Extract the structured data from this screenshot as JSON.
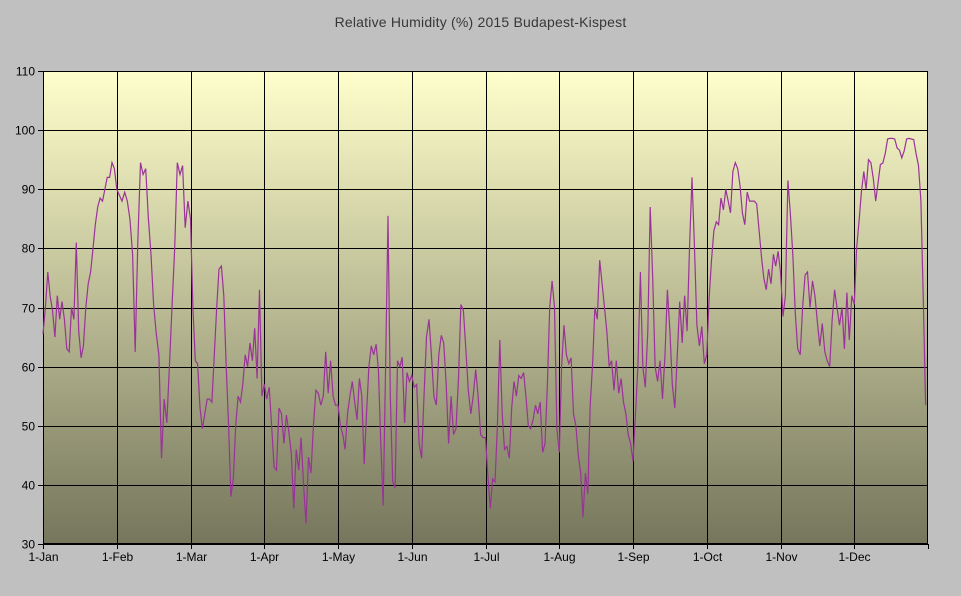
{
  "window": {
    "background_color": "#c0c0c0"
  },
  "chart_data": {
    "type": "line",
    "title": "Relative Humidity (%) 2015 Budapest-Kispest",
    "xlabel": "",
    "ylabel": "",
    "ylim": [
      30,
      110
    ],
    "y_ticks": [
      110,
      100,
      90,
      80,
      70,
      60,
      50,
      40,
      30
    ],
    "x_tick_labels": [
      "1-Jan",
      "1-Feb",
      "1-Mar",
      "1-Apr",
      "1-May",
      "1-Jun",
      "1-Jul",
      "1-Aug",
      "1-Sep",
      "1-Oct",
      "1-Nov",
      "1-Dec"
    ],
    "days_in_month": [
      31,
      28,
      31,
      30,
      31,
      30,
      31,
      31,
      30,
      31,
      30,
      31
    ],
    "grid": true,
    "legend_position": "none",
    "colors": {
      "outer_bg": "#c0c0c0",
      "plot_bg_top": "#ffffcc",
      "plot_bg_bottom": "#75765c",
      "grid": "#000000",
      "line": "#993399",
      "text": "#000000",
      "title_text": "#373737"
    },
    "series": [
      {
        "name": "Relative Humidity (%) daily, 2015",
        "values": [
          65.5,
          70,
          76,
          72,
          69.5,
          65,
          72,
          68,
          71,
          68,
          63,
          62.5,
          70,
          68,
          81,
          66,
          61.5,
          63.5,
          70,
          74,
          76,
          80,
          84,
          87,
          88.5,
          88,
          90,
          92,
          92,
          94.5,
          93.5,
          90,
          89,
          88,
          89.5,
          88,
          85,
          79,
          62.5,
          81,
          94.5,
          92.5,
          93.5,
          85,
          79,
          70.5,
          65.5,
          62,
          44.5,
          54.5,
          50.5,
          60,
          70.5,
          80,
          94.5,
          92.5,
          94,
          83.5,
          88,
          85,
          70,
          61,
          60.5,
          53,
          49.5,
          52,
          54.5,
          54.5,
          54,
          62,
          70,
          76.5,
          77,
          72,
          60,
          50,
          38,
          41,
          50,
          55,
          54,
          57,
          62,
          60,
          64,
          61,
          66.5,
          58,
          73,
          55,
          57,
          54.5,
          56.5,
          50,
          43,
          42.5,
          53,
          52,
          47,
          51.8,
          49,
          45.3,
          36,
          46,
          42.5,
          48,
          40,
          33.5,
          44.7,
          42,
          50,
          56,
          55.5,
          53.5,
          55,
          62.5,
          55.5,
          61,
          55,
          53.5,
          53.5,
          50,
          48.5,
          46,
          52,
          55,
          57.5,
          54,
          51,
          58,
          55,
          43.5,
          52,
          60,
          63.5,
          62,
          63.8,
          59.5,
          47,
          36.5,
          60,
          85.5,
          55,
          40.5,
          39.5,
          61,
          60,
          61.6,
          50.5,
          59,
          57.5,
          58.5,
          56.5,
          57,
          47,
          44.5,
          55,
          65,
          68,
          62,
          55,
          53.5,
          62,
          65.3,
          64,
          57,
          47,
          55,
          48.5,
          49.5,
          58,
          70.5,
          69.5,
          63,
          56,
          52,
          55,
          59.5,
          55,
          48.5,
          48,
          48,
          41.5,
          36,
          41,
          40.5,
          50,
          64.5,
          52,
          46,
          46.5,
          44.5,
          53,
          57.5,
          55,
          58.5,
          58,
          59,
          55,
          50,
          49.5,
          51,
          53.5,
          52,
          54,
          45.5,
          47,
          57,
          70,
          74.5,
          70,
          49.5,
          45.5,
          60,
          67,
          62,
          60.5,
          61.5,
          52,
          50,
          45,
          42,
          34.5,
          42,
          38.5,
          53.5,
          60.5,
          70,
          68,
          78,
          74,
          70,
          66,
          60,
          61,
          56,
          61,
          55.5,
          58,
          54,
          52,
          48.5,
          47,
          44,
          52,
          60,
          76,
          60,
          56.5,
          66,
          87,
          75,
          60,
          57.5,
          61,
          54.5,
          62,
          73,
          66,
          57,
          53,
          62,
          71,
          64,
          72,
          66,
          80,
          92,
          80,
          67,
          63.5,
          66.8,
          60.5,
          62,
          71.5,
          78,
          83,
          84.5,
          84,
          88.5,
          86.5,
          90,
          88,
          86,
          93,
          94.5,
          93.5,
          90.5,
          86,
          84,
          89.5,
          88,
          88,
          88,
          87.5,
          83,
          78.5,
          75,
          73,
          76.5,
          74,
          79,
          77,
          79.5,
          76,
          68.5,
          72,
          91.5,
          86,
          79,
          69,
          63,
          62,
          70,
          75.5,
          76,
          70,
          74.5,
          72,
          67.5,
          63.5,
          67.3,
          62.5,
          61,
          60,
          67.8,
          73,
          70,
          67,
          70,
          63,
          72.5,
          64.5,
          72,
          70.5,
          80,
          84.5,
          89.5,
          93,
          90,
          95,
          94.5,
          91.8,
          88,
          91,
          94.2,
          94.4,
          96,
          98.5,
          98.6,
          98.6,
          98.5,
          97,
          96.6,
          95.3,
          96.5,
          98.5,
          98.6,
          98.5,
          98.4,
          96,
          94,
          88,
          72,
          53.5
        ]
      }
    ]
  }
}
